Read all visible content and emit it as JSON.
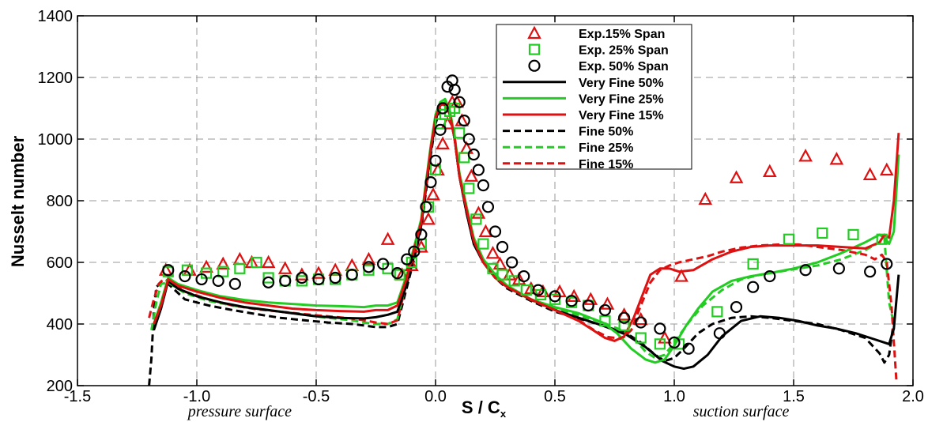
{
  "chart_data": {
    "type": "line",
    "xlabel_main": "S / C",
    "xlabel_sub": "x",
    "ylabel": "Nusselt number",
    "xlim": [
      -1.5,
      2.0
    ],
    "ylim": [
      200,
      1400
    ],
    "x_ticks": [
      "-1.5",
      "-1.0",
      "-0.5",
      "0.0",
      "0.5",
      "1.0",
      "1.5",
      "2.0"
    ],
    "y_ticks": [
      "200",
      "400",
      "600",
      "800",
      "1000",
      "1200",
      "1400"
    ],
    "grid": true,
    "legend_position": "top-right",
    "annotations": [
      {
        "text": "pressure surface",
        "x": -0.82
      },
      {
        "text": "suction surface",
        "x": 1.28
      }
    ],
    "series": [
      {
        "name": "Exp.15% Span",
        "style": "triangle",
        "color": "#dd1111",
        "x": [
          -1.13,
          -1.03,
          -0.96,
          -0.89,
          -0.82,
          -0.77,
          -0.7,
          -0.63,
          -0.56,
          -0.49,
          -0.42,
          -0.35,
          -0.28,
          -0.2,
          -0.14,
          -0.1,
          -0.06,
          -0.03,
          -0.01,
          0.01,
          0.03,
          0.05,
          0.07,
          0.09,
          0.11,
          0.13,
          0.15,
          0.18,
          0.21,
          0.24,
          0.27,
          0.31,
          0.35,
          0.4,
          0.45,
          0.52,
          0.58,
          0.65,
          0.72,
          0.79,
          0.86,
          0.96,
          1.03,
          1.13,
          1.26,
          1.4,
          1.55,
          1.68,
          1.82,
          1.89
        ],
        "y": [
          575,
          575,
          585,
          595,
          610,
          600,
          600,
          580,
          560,
          565,
          575,
          590,
          610,
          675,
          560,
          590,
          650,
          740,
          820,
          900,
          985,
          1050,
          1120,
          1120,
          1060,
          970,
          880,
          760,
          700,
          630,
          595,
          560,
          545,
          515,
          505,
          505,
          490,
          480,
          465,
          430,
          415,
          355,
          555,
          805,
          875,
          895,
          945,
          935,
          885,
          900
        ]
      },
      {
        "name": "Exp. 25% Span",
        "style": "square",
        "color": "#22cc22",
        "x": [
          -1.12,
          -1.04,
          -0.96,
          -0.89,
          -0.82,
          -0.75,
          -0.7,
          -0.63,
          -0.56,
          -0.49,
          -0.42,
          -0.35,
          -0.28,
          -0.2,
          -0.15,
          -0.1,
          -0.06,
          -0.03,
          0.0,
          0.02,
          0.04,
          0.06,
          0.08,
          0.1,
          0.12,
          0.14,
          0.17,
          0.2,
          0.24,
          0.28,
          0.33,
          0.38,
          0.44,
          0.5,
          0.57,
          0.64,
          0.71,
          0.79,
          0.86,
          0.94,
          1.02,
          1.18,
          1.33,
          1.48,
          1.62,
          1.75,
          1.87
        ],
        "y": [
          570,
          575,
          565,
          570,
          580,
          600,
          550,
          540,
          540,
          545,
          545,
          560,
          575,
          580,
          560,
          600,
          660,
          780,
          900,
          1050,
          1080,
          1090,
          1100,
          1020,
          940,
          840,
          740,
          660,
          580,
          560,
          540,
          510,
          495,
          480,
          470,
          460,
          410,
          395,
          355,
          335,
          335,
          440,
          595,
          675,
          695,
          690,
          675
        ]
      },
      {
        "name": "Exp. 50% Span",
        "style": "circle",
        "color": "#000000",
        "x": [
          -1.12,
          -1.05,
          -0.98,
          -0.91,
          -0.84,
          -0.7,
          -0.63,
          -0.56,
          -0.49,
          -0.42,
          -0.35,
          -0.28,
          -0.22,
          -0.16,
          -0.12,
          -0.09,
          -0.06,
          -0.04,
          -0.02,
          0.0,
          0.02,
          0.03,
          0.05,
          0.07,
          0.08,
          0.1,
          0.12,
          0.14,
          0.16,
          0.18,
          0.2,
          0.22,
          0.25,
          0.28,
          0.32,
          0.37,
          0.43,
          0.5,
          0.57,
          0.64,
          0.71,
          0.79,
          0.86,
          0.94,
          1.0,
          1.06,
          1.19,
          1.26,
          1.33,
          1.4,
          1.55,
          1.69,
          1.82,
          1.89
        ],
        "y": [
          575,
          555,
          545,
          540,
          530,
          535,
          540,
          550,
          545,
          550,
          560,
          585,
          595,
          565,
          610,
          635,
          690,
          780,
          860,
          930,
          1030,
          1100,
          1170,
          1190,
          1160,
          1120,
          1060,
          1000,
          950,
          900,
          850,
          780,
          700,
          650,
          600,
          555,
          510,
          490,
          475,
          460,
          445,
          420,
          405,
          385,
          340,
          320,
          370,
          455,
          520,
          555,
          575,
          580,
          570,
          595
        ]
      },
      {
        "name": "Very Fine 50%",
        "style": "solid",
        "color": "#000000",
        "x": [
          -1.18,
          -1.15,
          -1.12,
          -1.08,
          -1.0,
          -0.9,
          -0.8,
          -0.7,
          -0.6,
          -0.5,
          -0.4,
          -0.3,
          -0.25,
          -0.2,
          -0.16,
          -0.12,
          -0.09,
          -0.06,
          -0.04,
          -0.02,
          0.0,
          0.02,
          0.04,
          0.06,
          0.08,
          0.1,
          0.13,
          0.16,
          0.2,
          0.25,
          0.3,
          0.4,
          0.5,
          0.6,
          0.7,
          0.8,
          0.88,
          0.95,
          1.0,
          1.04,
          1.08,
          1.14,
          1.2,
          1.28,
          1.36,
          1.44,
          1.52,
          1.6,
          1.68,
          1.76,
          1.84,
          1.88,
          1.9,
          1.92,
          1.94
        ],
        "y": [
          380,
          450,
          540,
          515,
          490,
          470,
          455,
          445,
          435,
          425,
          420,
          418,
          422,
          430,
          440,
          530,
          620,
          720,
          840,
          960,
          1060,
          1110,
          1115,
          1080,
          1000,
          880,
          760,
          660,
          600,
          550,
          520,
          480,
          445,
          420,
          395,
          365,
          325,
          280,
          262,
          255,
          262,
          300,
          360,
          410,
          425,
          420,
          410,
          395,
          385,
          370,
          350,
          340,
          335,
          385,
          560
        ]
      },
      {
        "name": "Very Fine 25%",
        "style": "solid",
        "color": "#22cc22",
        "x": [
          -1.18,
          -1.15,
          -1.12,
          -1.08,
          -1.0,
          -0.9,
          -0.8,
          -0.7,
          -0.6,
          -0.5,
          -0.4,
          -0.3,
          -0.25,
          -0.2,
          -0.16,
          -0.12,
          -0.09,
          -0.06,
          -0.04,
          -0.02,
          0.0,
          0.02,
          0.04,
          0.06,
          0.08,
          0.1,
          0.13,
          0.16,
          0.2,
          0.25,
          0.3,
          0.4,
          0.5,
          0.6,
          0.7,
          0.76,
          0.82,
          0.88,
          0.92,
          0.96,
          1.0,
          1.05,
          1.1,
          1.16,
          1.24,
          1.32,
          1.4,
          1.5,
          1.6,
          1.7,
          1.8,
          1.86,
          1.88,
          1.9,
          1.92,
          1.94
        ],
        "y": [
          400,
          470,
          550,
          530,
          510,
          490,
          478,
          470,
          465,
          460,
          458,
          455,
          460,
          460,
          470,
          560,
          650,
          740,
          860,
          980,
          1080,
          1120,
          1130,
          1090,
          1010,
          890,
          780,
          680,
          610,
          560,
          525,
          480,
          455,
          435,
          405,
          370,
          320,
          285,
          275,
          285,
          330,
          395,
          450,
          505,
          540,
          555,
          565,
          580,
          600,
          630,
          665,
          690,
          680,
          660,
          700,
          950
        ]
      },
      {
        "name": "Very Fine 15%",
        "style": "solid",
        "color": "#dd1111",
        "x": [
          -1.18,
          -1.15,
          -1.12,
          -1.08,
          -1.0,
          -0.9,
          -0.8,
          -0.7,
          -0.6,
          -0.5,
          -0.4,
          -0.3,
          -0.25,
          -0.2,
          -0.16,
          -0.12,
          -0.09,
          -0.06,
          -0.04,
          -0.02,
          0.0,
          0.02,
          0.04,
          0.06,
          0.08,
          0.1,
          0.13,
          0.16,
          0.2,
          0.25,
          0.3,
          0.4,
          0.5,
          0.6,
          0.66,
          0.71,
          0.75,
          0.79,
          0.83,
          0.87,
          0.9,
          0.94,
          0.98,
          1.02,
          1.08,
          1.16,
          1.24,
          1.32,
          1.4,
          1.5,
          1.6,
          1.7,
          1.8,
          1.86,
          1.88,
          1.9,
          1.92,
          1.94
        ],
        "y": [
          400,
          460,
          545,
          525,
          505,
          485,
          470,
          460,
          450,
          445,
          442,
          440,
          445,
          445,
          460,
          550,
          640,
          730,
          850,
          970,
          1070,
          1110,
          1115,
          1080,
          1000,
          880,
          770,
          670,
          600,
          550,
          520,
          480,
          445,
          410,
          380,
          355,
          345,
          360,
          420,
          500,
          560,
          580,
          580,
          570,
          575,
          610,
          635,
          650,
          655,
          655,
          655,
          650,
          645,
          665,
          690,
          680,
          800,
          1020
        ]
      },
      {
        "name": "Fine 50%",
        "style": "dashed",
        "color": "#000000",
        "x": [
          -1.2,
          -1.19,
          -1.18,
          -1.17,
          -1.15,
          -1.12,
          -1.05,
          -0.95,
          -0.85,
          -0.75,
          -0.65,
          -0.55,
          -0.45,
          -0.35,
          -0.3,
          -0.25,
          -0.2,
          -0.16,
          -0.12,
          -0.09,
          -0.06,
          -0.04,
          -0.02,
          0.0,
          0.02,
          0.04,
          0.06,
          0.08,
          0.1,
          0.13,
          0.16,
          0.2,
          0.25,
          0.3,
          0.4,
          0.5,
          0.6,
          0.7,
          0.8,
          0.86,
          0.92,
          0.96,
          1.0,
          1.04,
          1.1,
          1.16,
          1.24,
          1.32,
          1.4,
          1.5,
          1.6,
          1.7,
          1.8,
          1.86,
          1.88,
          1.9,
          1.92
        ],
        "y": [
          200,
          290,
          440,
          520,
          535,
          530,
          480,
          460,
          445,
          432,
          420,
          412,
          405,
          400,
          395,
          390,
          390,
          400,
          520,
          610,
          710,
          830,
          950,
          1050,
          1100,
          1110,
          1080,
          1000,
          880,
          760,
          660,
          600,
          550,
          515,
          475,
          440,
          418,
          395,
          370,
          340,
          300,
          280,
          290,
          320,
          370,
          400,
          420,
          425,
          420,
          410,
          400,
          380,
          355,
          305,
          275,
          300,
          410
        ]
      },
      {
        "name": "Fine 25%",
        "style": "dashed",
        "color": "#22cc22",
        "x": [
          -1.19,
          -1.17,
          -1.15,
          -1.12,
          -1.05,
          -0.95,
          -0.85,
          -0.75,
          -0.65,
          -0.55,
          -0.45,
          -0.35,
          -0.3,
          -0.25,
          -0.2,
          -0.16,
          -0.12,
          -0.09,
          -0.06,
          -0.04,
          -0.02,
          0.0,
          0.02,
          0.04,
          0.06,
          0.08,
          0.1,
          0.13,
          0.16,
          0.2,
          0.25,
          0.3,
          0.4,
          0.5,
          0.6,
          0.7,
          0.78,
          0.84,
          0.88,
          0.92,
          0.96,
          1.0,
          1.06,
          1.12,
          1.2,
          1.28,
          1.36,
          1.44,
          1.52,
          1.6,
          1.7,
          1.8,
          1.86,
          1.88,
          1.9,
          1.92
        ],
        "y": [
          380,
          470,
          530,
          535,
          500,
          475,
          460,
          450,
          440,
          430,
          420,
          412,
          405,
          400,
          400,
          415,
          540,
          630,
          730,
          850,
          970,
          1070,
          1110,
          1120,
          1090,
          1010,
          890,
          775,
          675,
          605,
          555,
          520,
          478,
          450,
          428,
          405,
          380,
          345,
          310,
          290,
          300,
          340,
          405,
          460,
          510,
          545,
          560,
          570,
          580,
          590,
          610,
          640,
          665,
          680,
          470,
          400
        ]
      },
      {
        "name": "Fine 15%",
        "style": "dashed",
        "color": "#dd1111",
        "x": [
          -1.2,
          -1.18,
          -1.16,
          -1.14,
          -1.12,
          -1.05,
          -0.95,
          -0.85,
          -0.75,
          -0.65,
          -0.55,
          -0.45,
          -0.35,
          -0.3,
          -0.25,
          -0.2,
          -0.16,
          -0.12,
          -0.09,
          -0.06,
          -0.04,
          -0.02,
          0.0,
          0.02,
          0.04,
          0.06,
          0.08,
          0.1,
          0.13,
          0.16,
          0.2,
          0.25,
          0.3,
          0.4,
          0.5,
          0.6,
          0.66,
          0.72,
          0.78,
          0.82,
          0.86,
          0.9,
          0.94,
          0.98,
          1.02,
          1.08,
          1.14,
          1.2,
          1.28,
          1.36,
          1.44,
          1.52,
          1.6,
          1.7,
          1.8,
          1.84,
          1.87,
          1.89,
          1.91,
          1.93
        ],
        "y": [
          420,
          480,
          530,
          545,
          540,
          505,
          480,
          460,
          448,
          440,
          432,
          425,
          418,
          412,
          405,
          400,
          412,
          540,
          630,
          730,
          850,
          970,
          1070,
          1110,
          1115,
          1080,
          1000,
          880,
          770,
          670,
          600,
          550,
          520,
          478,
          445,
          412,
          382,
          358,
          352,
          380,
          460,
          535,
          575,
          590,
          600,
          610,
          620,
          635,
          648,
          655,
          658,
          658,
          650,
          640,
          625,
          610,
          625,
          600,
          460,
          220
        ]
      }
    ]
  }
}
